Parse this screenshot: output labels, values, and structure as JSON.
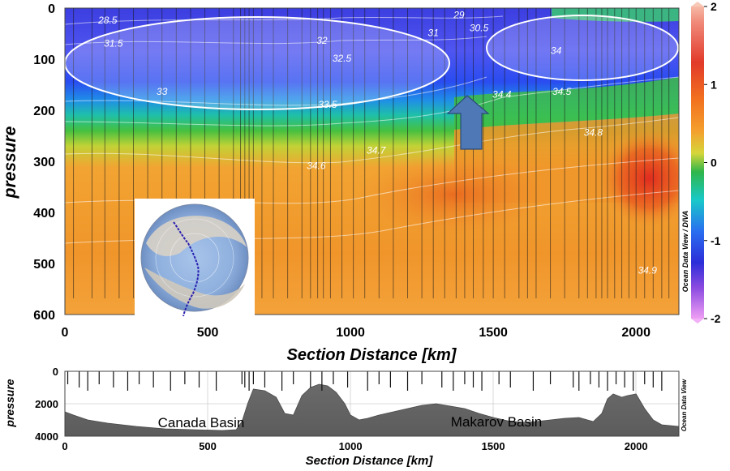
{
  "chart_data": [
    {
      "type": "heatmap",
      "ylabel": "pressure",
      "xlabel": "Section Distance [km]",
      "xlim": [
        0,
        2150
      ],
      "ylim": [
        600,
        0
      ],
      "x_ticks": [
        0,
        500,
        1000,
        1500,
        2000
      ],
      "y_ticks": [
        0,
        100,
        200,
        300,
        400,
        500,
        600
      ],
      "colorbar": {
        "range": [
          -2,
          2
        ],
        "ticks": [
          -2,
          -1,
          0,
          1,
          2
        ],
        "credit": "Ocean Data View / DIVA"
      },
      "station_x": [
        30,
        95,
        140,
        190,
        240,
        290,
        340,
        390,
        440,
        490,
        540,
        590,
        615,
        630,
        645,
        660,
        690,
        730,
        780,
        830,
        860,
        885,
        905,
        930,
        970,
        1010,
        1050,
        1100,
        1150,
        1200,
        1250,
        1290,
        1330,
        1370,
        1400,
        1430,
        1465,
        1500,
        1540,
        1590,
        1620,
        1650,
        1700,
        1750,
        1800,
        1830,
        1860,
        1880,
        1900,
        1925,
        1950,
        1975,
        2000,
        2030,
        2060,
        2090,
        2115
      ],
      "contour_labels": [
        {
          "text": "28.5",
          "x": 150,
          "p": 30
        },
        {
          "text": "31.5",
          "x": 170,
          "p": 75
        },
        {
          "text": "32",
          "x": 900,
          "p": 70
        },
        {
          "text": "32.5",
          "x": 970,
          "p": 105
        },
        {
          "text": "33",
          "x": 340,
          "p": 170
        },
        {
          "text": "33.5",
          "x": 920,
          "p": 195
        },
        {
          "text": "31",
          "x": 1290,
          "p": 55
        },
        {
          "text": "29",
          "x": 1380,
          "p": 20
        },
        {
          "text": "30.5",
          "x": 1450,
          "p": 45
        },
        {
          "text": "34",
          "x": 1720,
          "p": 90
        },
        {
          "text": "34.4",
          "x": 1530,
          "p": 175
        },
        {
          "text": "34.5",
          "x": 1740,
          "p": 170
        },
        {
          "text": "34.6",
          "x": 880,
          "p": 315
        },
        {
          "text": "34.7",
          "x": 1090,
          "p": 285
        },
        {
          "text": "34.8",
          "x": 1850,
          "p": 250
        },
        {
          "text": "34.9",
          "x": 2040,
          "p": 520
        }
      ]
    },
    {
      "type": "area",
      "ylabel": "pressure",
      "xlabel": "Section Distance [km]",
      "xlim": [
        0,
        2150
      ],
      "ylim": [
        4000,
        0
      ],
      "x_ticks": [
        0,
        500,
        1000,
        1500,
        2000
      ],
      "y_ticks": [
        0,
        2000,
        4000
      ],
      "credit": "Ocean Data View",
      "annotations": [
        "Canada Basin",
        "Makarov Basin"
      ],
      "x": [
        0,
        30,
        80,
        150,
        250,
        350,
        450,
        550,
        600,
        620,
        640,
        660,
        700,
        740,
        770,
        800,
        830,
        860,
        890,
        920,
        950,
        980,
        1000,
        1030,
        1060,
        1100,
        1150,
        1200,
        1250,
        1300,
        1350,
        1400,
        1450,
        1500,
        1550,
        1600,
        1650,
        1700,
        1750,
        1800,
        1850,
        1880,
        1900,
        1920,
        1950,
        1970,
        2000,
        2030,
        2060,
        2090,
        2150
      ],
      "y": [
        2500,
        2700,
        3000,
        3200,
        3400,
        3550,
        3600,
        3650,
        3600,
        3100,
        2000,
        1100,
        1200,
        1600,
        2600,
        2700,
        1500,
        1000,
        800,
        900,
        1300,
        2000,
        2700,
        3000,
        2900,
        2700,
        2500,
        2300,
        2100,
        2000,
        2150,
        2300,
        2600,
        2850,
        3050,
        3150,
        3100,
        3000,
        2900,
        2850,
        3100,
        2600,
        1700,
        1400,
        1600,
        1500,
        1400,
        2300,
        3000,
        3300,
        3400
      ],
      "station_x": [
        10,
        50,
        80,
        120,
        170,
        220,
        260,
        310,
        370,
        420,
        470,
        530,
        620,
        630,
        645,
        660,
        700,
        760,
        800,
        860,
        900,
        940,
        990,
        1060,
        1100,
        1140,
        1200,
        1250,
        1320,
        1360,
        1400,
        1430,
        1460,
        1520,
        1560,
        1640,
        1700,
        1780,
        1800,
        1840,
        1870,
        1900,
        1930,
        1960,
        1990,
        2030,
        2060,
        2090
      ]
    }
  ]
}
